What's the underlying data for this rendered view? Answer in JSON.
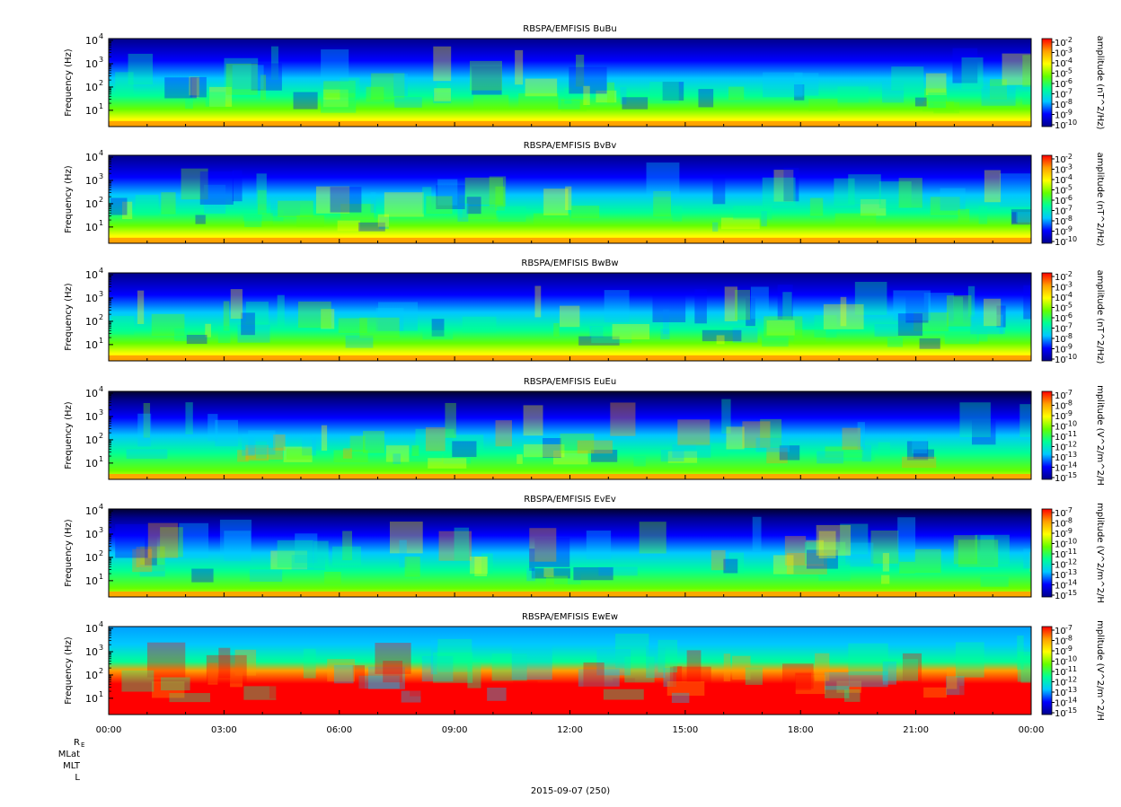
{
  "chart_data": [
    {
      "type": "heatmap",
      "title": "RBSPA/EMFISIS  BuBu",
      "ylabel": "Frequency (Hz)",
      "yscale": "log",
      "yticks": [
        "10",
        "10",
        "10",
        "10"
      ],
      "ytick_exponents": [
        "1",
        "2",
        "3",
        "4"
      ],
      "ylim": [
        2,
        12000
      ],
      "colorbar_label": "amplitude (nT^2/Hz)",
      "colorbar_ticks": [
        "10",
        "10",
        "10",
        "10",
        "10",
        "10",
        "10",
        "10",
        "10"
      ],
      "colorbar_exponents": [
        "-2",
        "-3",
        "-4",
        "-5",
        "-6",
        "-7",
        "-8",
        "-9",
        "-10"
      ],
      "clim_log10": [
        -10,
        -2
      ]
    },
    {
      "type": "heatmap",
      "title": "RBSPA/EMFISIS  BvBv",
      "ylabel": "Frequency (Hz)",
      "yscale": "log",
      "yticks": [
        "10",
        "10",
        "10",
        "10"
      ],
      "ytick_exponents": [
        "1",
        "2",
        "3",
        "4"
      ],
      "ylim": [
        2,
        12000
      ],
      "colorbar_label": "amplitude (nT^2/Hz)",
      "colorbar_ticks": [
        "10",
        "10",
        "10",
        "10",
        "10",
        "10",
        "10",
        "10",
        "10"
      ],
      "colorbar_exponents": [
        "-2",
        "-3",
        "-4",
        "-5",
        "-6",
        "-7",
        "-8",
        "-9",
        "-10"
      ],
      "clim_log10": [
        -10,
        -2
      ]
    },
    {
      "type": "heatmap",
      "title": "RBSPA/EMFISIS  BwBw",
      "ylabel": "Frequency (Hz)",
      "yscale": "log",
      "yticks": [
        "10",
        "10",
        "10",
        "10"
      ],
      "ytick_exponents": [
        "1",
        "2",
        "3",
        "4"
      ],
      "ylim": [
        2,
        12000
      ],
      "colorbar_label": "amplitude (nT^2/Hz)",
      "colorbar_ticks": [
        "10",
        "10",
        "10",
        "10",
        "10",
        "10",
        "10",
        "10",
        "10"
      ],
      "colorbar_exponents": [
        "-2",
        "-3",
        "-4",
        "-5",
        "-6",
        "-7",
        "-8",
        "-9",
        "-10"
      ],
      "clim_log10": [
        -10,
        -2
      ]
    },
    {
      "type": "heatmap",
      "title": "RBSPA/EMFISIS  EuEu",
      "ylabel": "Frequency (Hz)",
      "yscale": "log",
      "yticks": [
        "10",
        "10",
        "10",
        "10"
      ],
      "ytick_exponents": [
        "1",
        "2",
        "3",
        "4"
      ],
      "ylim": [
        2,
        12000
      ],
      "colorbar_label": "mplitude (V^2/m^2/H",
      "colorbar_ticks": [
        "10",
        "10",
        "10",
        "10",
        "10",
        "10",
        "10",
        "10",
        "10"
      ],
      "colorbar_exponents": [
        "-7",
        "-8",
        "-9",
        "-10",
        "-11",
        "-12",
        "-13",
        "-14",
        "-15"
      ],
      "clim_log10": [
        -15,
        -7
      ]
    },
    {
      "type": "heatmap",
      "title": "RBSPA/EMFISIS  EvEv",
      "ylabel": "Frequency (Hz)",
      "yscale": "log",
      "yticks": [
        "10",
        "10",
        "10",
        "10"
      ],
      "ytick_exponents": [
        "1",
        "2",
        "3",
        "4"
      ],
      "ylim": [
        2,
        12000
      ],
      "colorbar_label": "mplitude (V^2/m^2/H",
      "colorbar_ticks": [
        "10",
        "10",
        "10",
        "10",
        "10",
        "10",
        "10",
        "10",
        "10"
      ],
      "colorbar_exponents": [
        "-7",
        "-8",
        "-9",
        "-10",
        "-11",
        "-12",
        "-13",
        "-14",
        "-15"
      ],
      "clim_log10": [
        -15,
        -7
      ]
    },
    {
      "type": "heatmap",
      "title": "RBSPA/EMFISIS  EwEw",
      "ylabel": "Frequency (Hz)",
      "yscale": "log",
      "yticks": [
        "10",
        "10",
        "10",
        "10"
      ],
      "ytick_exponents": [
        "1",
        "2",
        "3",
        "4"
      ],
      "ylim": [
        2,
        12000
      ],
      "colorbar_label": "mplitude (V^2/m^2/H",
      "colorbar_ticks": [
        "10",
        "10",
        "10",
        "10",
        "10",
        "10",
        "10",
        "10",
        "10"
      ],
      "colorbar_exponents": [
        "-7",
        "-8",
        "-9",
        "-10",
        "-11",
        "-12",
        "-13",
        "-14",
        "-15"
      ],
      "clim_log10": [
        -15,
        -7
      ]
    }
  ],
  "xaxis": {
    "ticks": [
      "00:00",
      "03:00",
      "06:00",
      "09:00",
      "12:00",
      "15:00",
      "18:00",
      "21:00",
      "00:00"
    ],
    "label": "2015-09-07 (250)"
  },
  "ephemeris": {
    "labels": [
      "R",
      "MLat",
      "MLT",
      "L"
    ],
    "re_subscript": "E"
  },
  "colors": {
    "background": "#ffffff",
    "colormap": [
      "#00008b",
      "#0000ff",
      "#00c8ff",
      "#00ff96",
      "#64ff00",
      "#ffff00",
      "#ffa000",
      "#ff0000"
    ]
  }
}
